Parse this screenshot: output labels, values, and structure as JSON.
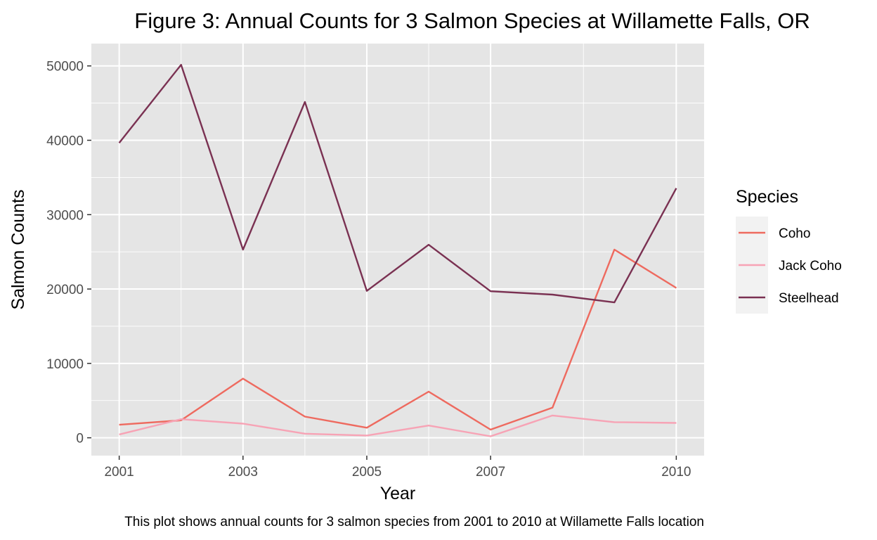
{
  "chart_data": {
    "type": "line",
    "title": "Figure 3: Annual Counts for 3 Salmon Species at Willamette Falls, OR",
    "xlabel": "Year",
    "ylabel": "Salmon Counts",
    "caption": "This plot shows annual counts for 3 salmon species from 2001 to 2010 at Willamette Falls location",
    "x": [
      2001,
      2002,
      2003,
      2004,
      2005,
      2006,
      2007,
      2008,
      2009,
      2010
    ],
    "x_ticks": [
      2001,
      2003,
      2005,
      2007,
      2010
    ],
    "x_tick_labels": [
      "2001",
      "2003",
      "2005",
      "2007",
      "2010"
    ],
    "xlim": [
      2000.55,
      2010.45
    ],
    "y_ticks": [
      0,
      10000,
      20000,
      30000,
      40000,
      50000
    ],
    "y_tick_labels": [
      "0",
      "10000",
      "20000",
      "30000",
      "40000",
      "50000"
    ],
    "ylim": [
      -2400,
      53000
    ],
    "grid": true,
    "panel_background": "#e5e5e5",
    "grid_color": "#ffffff",
    "legend": {
      "title": "Species",
      "placement": "right"
    },
    "series": [
      {
        "name": "Coho",
        "color": "#ee6a5f",
        "values": [
          1750,
          2350,
          7950,
          2850,
          1350,
          6200,
          1100,
          4050,
          25300,
          20150
        ]
      },
      {
        "name": "Jack Coho",
        "color": "#f7a3b5",
        "values": [
          450,
          2500,
          1900,
          550,
          300,
          1650,
          200,
          3000,
          2100,
          2000
        ]
      },
      {
        "name": "Steelhead",
        "color": "#7a3152",
        "values": [
          39650,
          50150,
          25300,
          45150,
          19750,
          25950,
          19700,
          19250,
          18200,
          33550
        ]
      }
    ]
  }
}
